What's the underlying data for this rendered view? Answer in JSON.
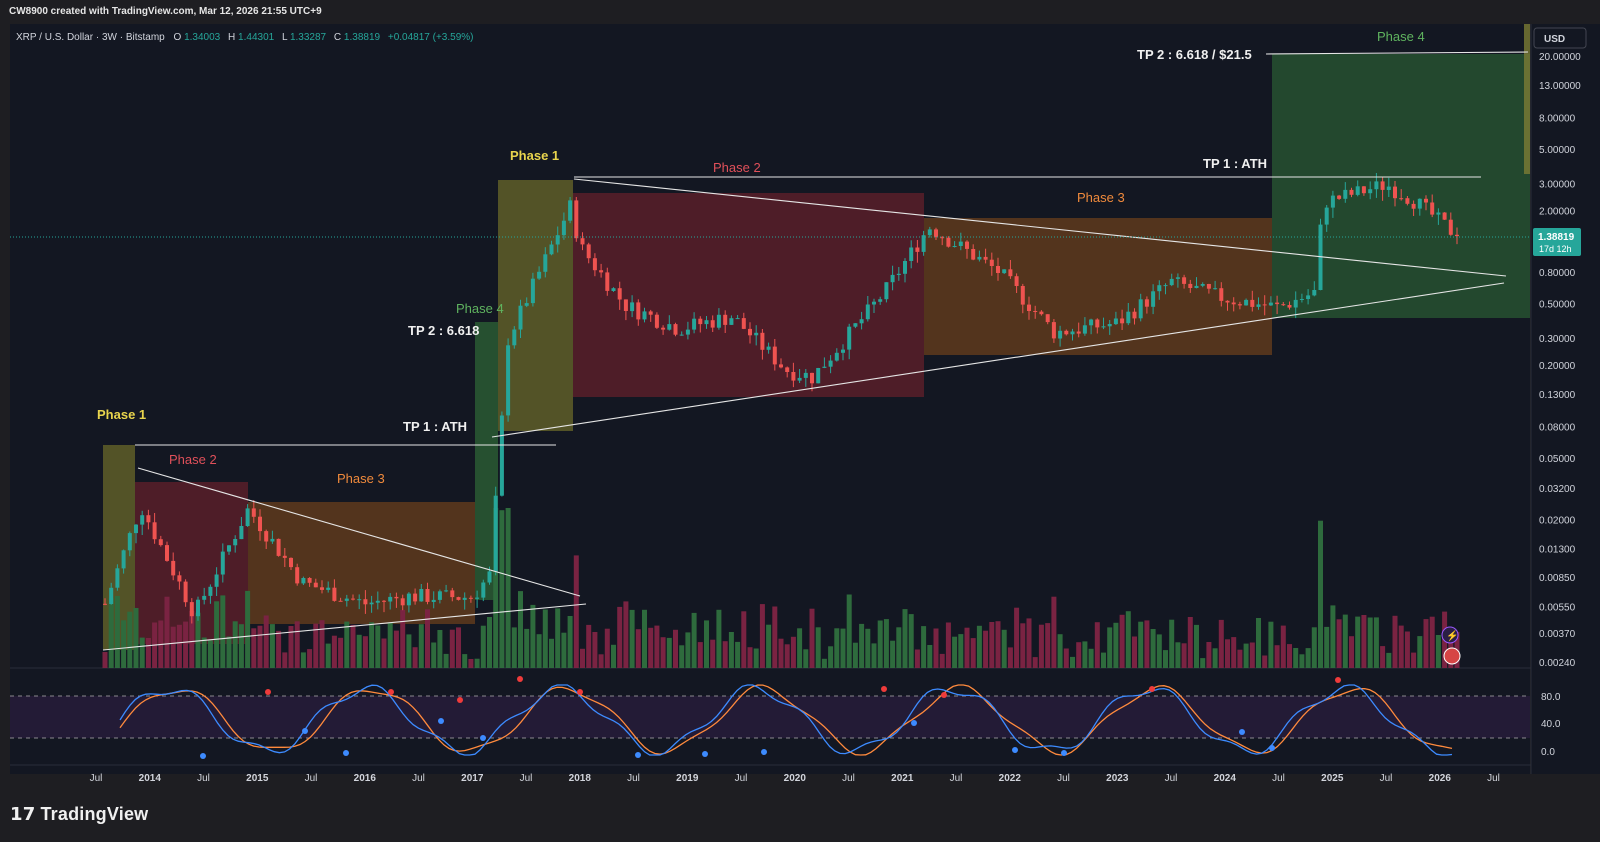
{
  "header": {
    "credit": "CW8900 created with TradingView.com, Mar 12, 2026 21:55 UTC+9"
  },
  "legend": {
    "symbol": "XRP / U.S. Dollar · 3W · Bitstamp",
    "o_label": "O",
    "o": "1.34003",
    "h_label": "H",
    "h": "1.44301",
    "l_label": "L",
    "l": "1.33287",
    "c_label": "C",
    "c": "1.38819",
    "chg": "+0.04817 (+3.59%)"
  },
  "price_axis": {
    "currency": "USD",
    "ticks": [
      "20.00000",
      "13.00000",
      "8.00000",
      "5.00000",
      "3.00000",
      "2.00000",
      "0.80000",
      "0.50000",
      "0.30000",
      "0.20000",
      "0.13000",
      "0.08000",
      "0.05000",
      "0.03200",
      "0.02000",
      "0.01300",
      "0.00850",
      "0.00550",
      "0.00370",
      "0.00240"
    ],
    "last_price": "1.38819",
    "countdown": "17d 12h"
  },
  "time_axis": [
    "Jul",
    "2014",
    "Jul",
    "2015",
    "Jul",
    "2016",
    "Jul",
    "2017",
    "Jul",
    "2018",
    "Jul",
    "2019",
    "Jul",
    "2020",
    "Jul",
    "2021",
    "Jul",
    "2022",
    "Jul",
    "2023",
    "Jul",
    "2024",
    "Jul",
    "2025",
    "Jul",
    "2026",
    "Jul"
  ],
  "rsi_axis": [
    "80.0",
    "40.0",
    "0.0"
  ],
  "annotations": {
    "phase1_a": "Phase 1",
    "phase2_a": "Phase 2",
    "phase3_a": "Phase 3",
    "phase4_a": "Phase 4",
    "tp1_a": "TP 1 : ATH",
    "tp2_a": "TP 2 : 6.618",
    "phase1_b": "Phase 1",
    "phase2_b": "Phase 2",
    "phase3_b": "Phase 3",
    "phase4_b": "Phase 4",
    "tp1_b": "TP 1 : ATH",
    "tp2_b": "TP 2 : 6.618 / $21.5"
  },
  "brand": {
    "name": "TradingView",
    "logo": "17"
  },
  "colors": {
    "up": "#26a69a",
    "down": "#ef5350",
    "bg": "#131722",
    "phase1": "#7a7a2e",
    "phase2": "#6b2430",
    "phase3": "#6d4320",
    "phase4": "#2a5e36"
  },
  "chart_data": {
    "type": "candlestick",
    "title": "XRP / U.S. Dollar · 3W · Bitstamp",
    "scale": "log",
    "ylim": [
      0.0024,
      20
    ],
    "last_close": 1.38819,
    "series": [
      {
        "name": "XRP price (approx. closes)",
        "points": [
          [
            "2013-08",
            0.0058
          ],
          [
            "2013-12",
            0.025
          ],
          [
            "2014-06",
            0.005
          ],
          [
            "2014-12",
            0.024
          ],
          [
            "2015-06",
            0.008
          ],
          [
            "2016-01",
            0.0058
          ],
          [
            "2016-06",
            0.0065
          ],
          [
            "2017-01",
            0.0064
          ],
          [
            "2017-03",
            0.009
          ],
          [
            "2017-05",
            0.3
          ],
          [
            "2017-12",
            2.2
          ],
          [
            "2018-01",
            1.2
          ],
          [
            "2018-06",
            0.5
          ],
          [
            "2018-12",
            0.35
          ],
          [
            "2019-06",
            0.42
          ],
          [
            "2019-12",
            0.19
          ],
          [
            "2020-03",
            0.17
          ],
          [
            "2020-11",
            0.6
          ],
          [
            "2021-04",
            1.6
          ],
          [
            "2021-12",
            0.8
          ],
          [
            "2022-06",
            0.33
          ],
          [
            "2023-01",
            0.38
          ],
          [
            "2023-07",
            0.7
          ],
          [
            "2024-01",
            0.55
          ],
          [
            "2024-07",
            0.48
          ],
          [
            "2024-11",
            0.6
          ],
          [
            "2024-12",
            2.3
          ],
          [
            "2025-07",
            3.0
          ],
          [
            "2025-10",
            2.4
          ],
          [
            "2026-03",
            1.38819
          ]
        ]
      },
      {
        "name": "Volume",
        "type": "bar"
      },
      {
        "name": "Stochastic RSI",
        "ylim": [
          0,
          100
        ],
        "levels": [
          80,
          20
        ]
      }
    ],
    "annotations": [
      "Phase 1",
      "Phase 2",
      "Phase 3",
      "Phase 4",
      "TP 1 : ATH",
      "TP 2 : 6.618",
      "Phase 1",
      "Phase 2",
      "Phase 3",
      "Phase 4",
      "TP 1 : ATH",
      "TP 2 : 6.618 / $21.5"
    ]
  }
}
